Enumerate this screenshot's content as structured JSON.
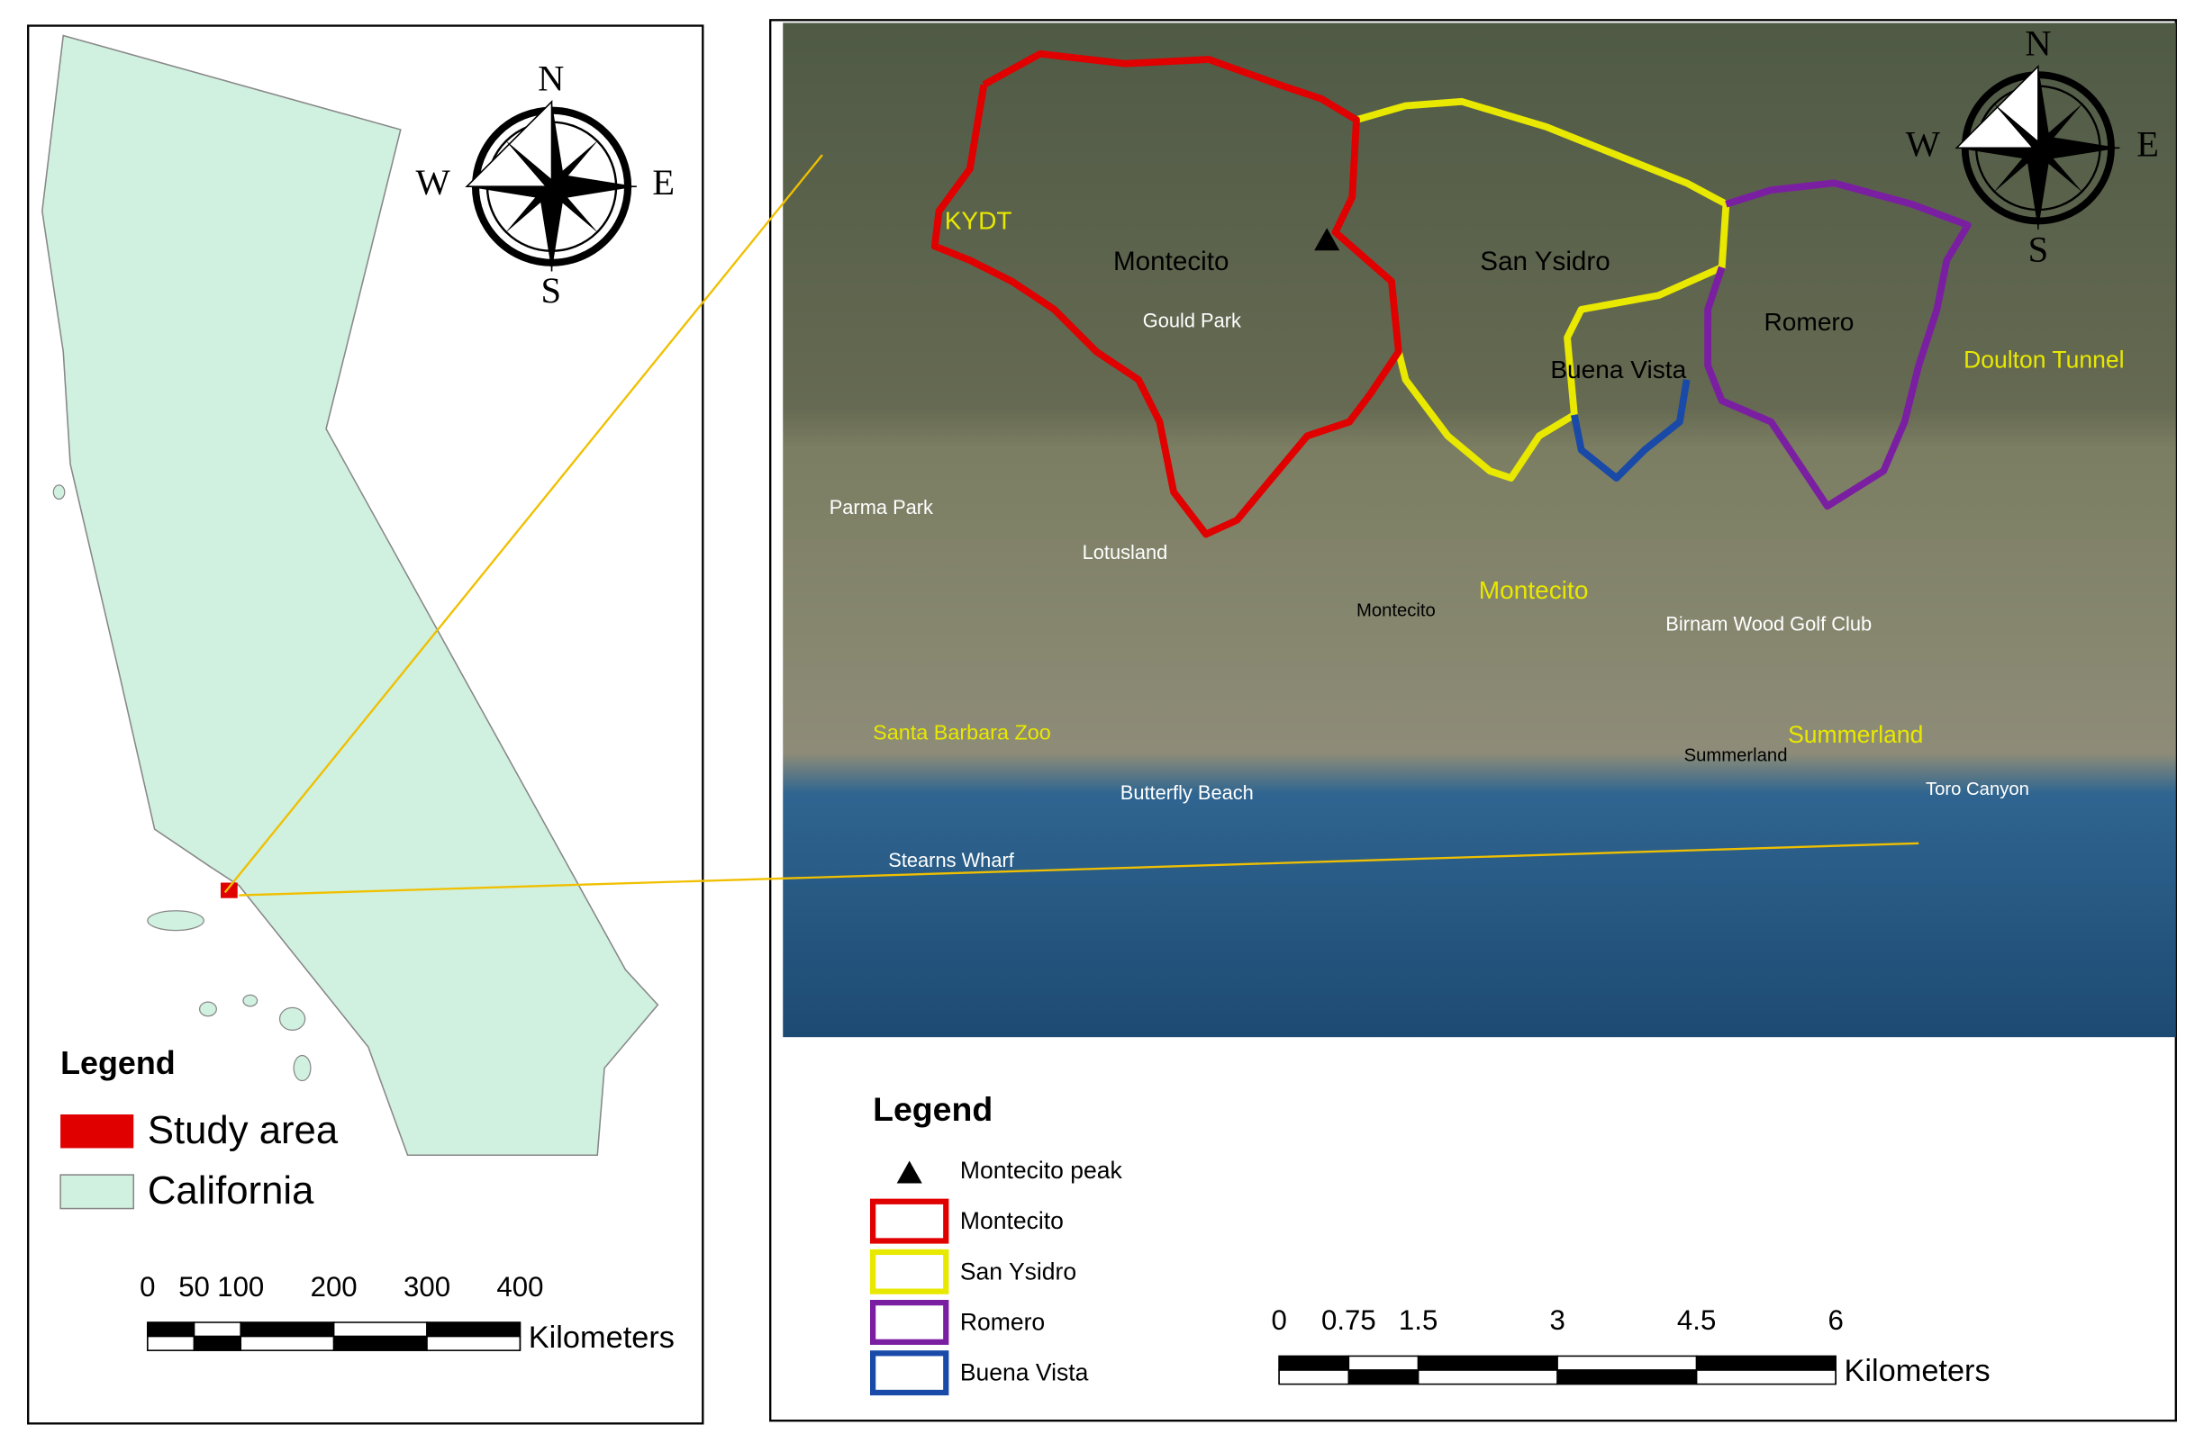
{
  "left_panel": {
    "compass": {
      "n": "N",
      "e": "E",
      "s": "S",
      "w": "W"
    },
    "legend": {
      "title": "Legend",
      "items": [
        "Study area",
        "California"
      ]
    },
    "scale": {
      "ticks": [
        0,
        50,
        100,
        200,
        300,
        400
      ],
      "unit": "Kilometers"
    }
  },
  "right_panel": {
    "compass": {
      "n": "N",
      "e": "E",
      "s": "S",
      "w": "W"
    },
    "map_labels": [
      "KYDT",
      "Montecito",
      "San Ysidro",
      "Romero",
      "Buena Vista",
      "Doulton Tunnel",
      "Gould Park",
      "Parma Park",
      "Lotusland",
      "Montecito",
      "Montecito",
      "Birnam Wood Golf Club",
      "Santa Barbara Zoo",
      "Butterfly Beach",
      "Summerland",
      "Summerland",
      "Toro Canyon",
      "Stearns Wharf"
    ],
    "legend": {
      "title": "Legend",
      "items": [
        "Montecito peak",
        "Montecito",
        "San Ysidro",
        "Romero",
        "Buena Vista"
      ]
    },
    "scale": {
      "ticks": [
        0,
        0.75,
        1.5,
        3,
        4.5,
        6
      ],
      "unit": "Kilometers"
    }
  }
}
